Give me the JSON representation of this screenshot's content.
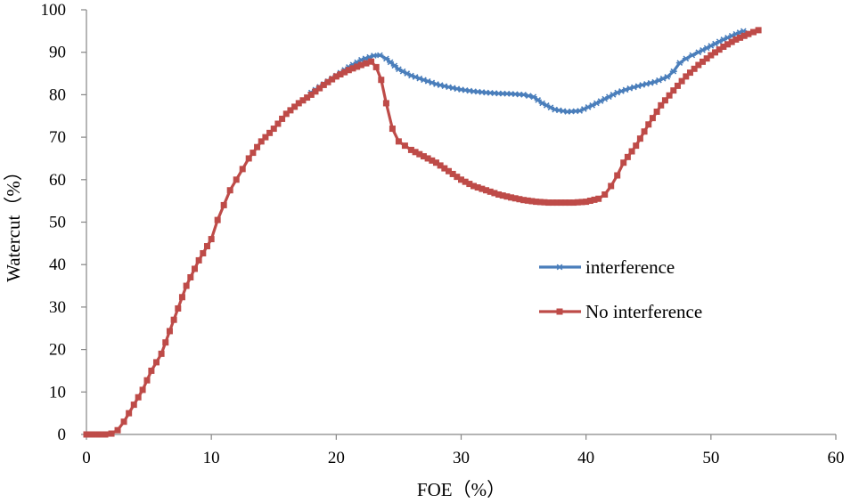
{
  "chart_data": {
    "type": "line",
    "title": "",
    "xlabel": "FOE（%）",
    "ylabel": "Watercut（%）",
    "xlim": [
      0,
      60
    ],
    "ylim": [
      0,
      100
    ],
    "x_ticks": [
      "0",
      "10",
      "20",
      "30",
      "40",
      "50",
      "60"
    ],
    "y_ticks": [
      "0",
      "10",
      "20",
      "30",
      "40",
      "50",
      "60",
      "70",
      "80",
      "90",
      "100"
    ],
    "grid": false,
    "legend_position": "center-right",
    "series": [
      {
        "name": "interference",
        "color": "#4a7ebb",
        "marker": "star",
        "points": [
          [
            18,
            80.5
          ],
          [
            19,
            82.5
          ],
          [
            20,
            84.5
          ],
          [
            21,
            86.5
          ],
          [
            22,
            88.2
          ],
          [
            23,
            89.2
          ],
          [
            23.5,
            89.3
          ],
          [
            24,
            88.5
          ],
          [
            25,
            86
          ],
          [
            26,
            84.5
          ],
          [
            27,
            83.5
          ],
          [
            28,
            82.5
          ],
          [
            29,
            81.8
          ],
          [
            30,
            81.2
          ],
          [
            31,
            80.8
          ],
          [
            32,
            80.5
          ],
          [
            33,
            80.3
          ],
          [
            34,
            80.2
          ],
          [
            35,
            80
          ],
          [
            35.8,
            79.5
          ],
          [
            36.5,
            78
          ],
          [
            37.5,
            76.5
          ],
          [
            38.5,
            76
          ],
          [
            39.5,
            76.2
          ],
          [
            40.5,
            77.5
          ],
          [
            41.5,
            79
          ],
          [
            42.5,
            80.5
          ],
          [
            43.5,
            81.5
          ],
          [
            44.5,
            82.3
          ],
          [
            45.5,
            83
          ],
          [
            46.5,
            84.2
          ],
          [
            47,
            85.5
          ],
          [
            47.5,
            87.5
          ],
          [
            48,
            88.5
          ],
          [
            48.5,
            89.3
          ],
          [
            49,
            90
          ],
          [
            50,
            91.5
          ],
          [
            51,
            93
          ],
          [
            52,
            94.3
          ],
          [
            52.6,
            95
          ]
        ]
      },
      {
        "name": "No interference",
        "color": "#be4b48",
        "marker": "square",
        "points": [
          [
            0,
            0
          ],
          [
            0.5,
            0
          ],
          [
            1,
            0
          ],
          [
            1.5,
            0
          ],
          [
            2,
            0.2
          ],
          [
            2.5,
            1
          ],
          [
            3,
            3
          ],
          [
            3.8,
            7
          ],
          [
            4.5,
            10.5
          ],
          [
            5.2,
            15
          ],
          [
            6,
            19
          ],
          [
            7,
            27
          ],
          [
            8,
            35
          ],
          [
            9,
            41
          ],
          [
            10,
            46
          ],
          [
            10.5,
            50.5
          ],
          [
            11,
            54
          ],
          [
            11.5,
            57.5
          ],
          [
            12,
            60
          ],
          [
            12.5,
            62.5
          ],
          [
            13,
            65
          ],
          [
            14,
            69
          ],
          [
            15,
            72
          ],
          [
            16,
            75.5
          ],
          [
            17,
            78
          ],
          [
            18,
            80
          ],
          [
            19,
            82.3
          ],
          [
            20,
            84.3
          ],
          [
            21,
            85.8
          ],
          [
            22,
            87
          ],
          [
            22.8,
            87.8
          ],
          [
            23.2,
            86.5
          ],
          [
            23.6,
            83.5
          ],
          [
            24,
            78
          ],
          [
            24.5,
            72
          ],
          [
            25,
            69
          ],
          [
            25.5,
            68
          ],
          [
            26,
            67
          ],
          [
            27,
            65.5
          ],
          [
            28,
            64
          ],
          [
            29,
            62
          ],
          [
            30,
            60
          ],
          [
            31,
            58.5
          ],
          [
            32,
            57.5
          ],
          [
            33,
            56.5
          ],
          [
            34,
            55.8
          ],
          [
            35,
            55.2
          ],
          [
            36,
            54.8
          ],
          [
            37,
            54.6
          ],
          [
            38,
            54.6
          ],
          [
            39,
            54.6
          ],
          [
            40,
            54.8
          ],
          [
            41,
            55.5
          ],
          [
            41.5,
            56.5
          ],
          [
            42,
            58.5
          ],
          [
            42.5,
            61
          ],
          [
            43,
            64
          ],
          [
            44,
            68
          ],
          [
            45,
            73
          ],
          [
            46,
            77.5
          ],
          [
            47,
            81
          ],
          [
            48,
            84.3
          ],
          [
            49,
            87
          ],
          [
            50,
            89.3
          ],
          [
            51,
            91.3
          ],
          [
            52,
            93
          ],
          [
            53,
            94.3
          ],
          [
            53.8,
            95.2
          ]
        ]
      }
    ]
  }
}
